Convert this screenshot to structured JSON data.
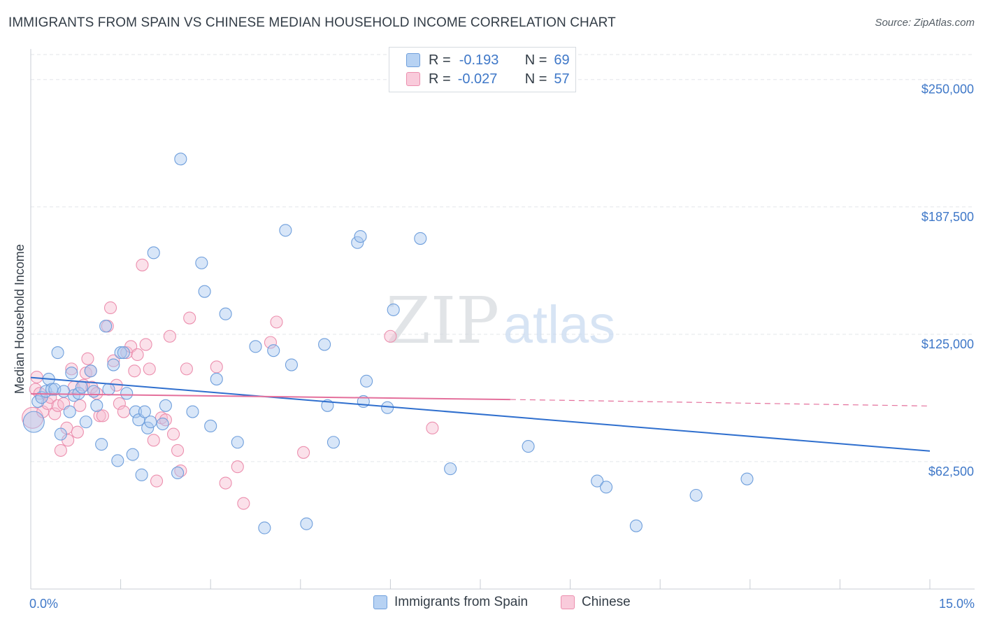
{
  "header": {
    "title": "IMMIGRANTS FROM SPAIN VS CHINESE MEDIAN HOUSEHOLD INCOME CORRELATION CHART",
    "source": "Source: ZipAtlas.com"
  },
  "watermark": {
    "zip": "ZIP",
    "atlas": "atlas"
  },
  "legend": {
    "spain": {
      "r_label": "R =",
      "r_value": "-0.193",
      "n_label": "N =",
      "n_value": "69"
    },
    "chinese": {
      "r_label": "R =",
      "r_value": "-0.027",
      "n_label": "N =",
      "n_value": "57"
    }
  },
  "bottom_legend": {
    "spain": "Immigrants from Spain",
    "chinese": "Chinese"
  },
  "colors": {
    "spain_fill": "#a8c8f0",
    "spain_stroke": "#6f9fdc",
    "spain_line": "#2f6fce",
    "chinese_fill": "#f6bdd0",
    "chinese_stroke": "#ec8fae",
    "chinese_line": "#e4709c",
    "axis_text": "#3f78c8",
    "grid": "#e3e6ea"
  },
  "chart_data": {
    "type": "scatter",
    "title": "IMMIGRANTS FROM SPAIN VS CHINESE MEDIAN HOUSEHOLD INCOME CORRELATION CHART",
    "xlabel": "",
    "ylabel": "Median Household Income",
    "xlim": [
      0,
      15
    ],
    "ylim": [
      0,
      265000
    ],
    "x_tick_labels": [
      "0.0%",
      "15.0%"
    ],
    "y_ticks": [
      62500,
      125000,
      187500,
      250000
    ],
    "y_tick_labels": [
      "$62,500",
      "$125,000",
      "$187,500",
      "$250,000"
    ],
    "grid": true,
    "series": [
      {
        "name": "Immigrants from Spain",
        "points": [
          [
            0.05,
            82000
          ],
          [
            0.12,
            92000
          ],
          [
            0.18,
            94000
          ],
          [
            0.25,
            97000
          ],
          [
            0.3,
            103000
          ],
          [
            0.35,
            98000
          ],
          [
            0.4,
            98000
          ],
          [
            0.45,
            116000
          ],
          [
            0.5,
            76000
          ],
          [
            0.55,
            97000
          ],
          [
            0.65,
            87000
          ],
          [
            0.68,
            106000
          ],
          [
            0.72,
            95000
          ],
          [
            0.8,
            96000
          ],
          [
            0.85,
            99000
          ],
          [
            0.92,
            82000
          ],
          [
            1.0,
            107000
          ],
          [
            1.05,
            97000
          ],
          [
            1.1,
            90000
          ],
          [
            1.18,
            71000
          ],
          [
            1.25,
            129000
          ],
          [
            1.3,
            98000
          ],
          [
            1.38,
            110000
          ],
          [
            1.45,
            63000
          ],
          [
            1.5,
            116000
          ],
          [
            1.55,
            116000
          ],
          [
            1.6,
            96000
          ],
          [
            1.7,
            66000
          ],
          [
            1.75,
            87000
          ],
          [
            1.8,
            83000
          ],
          [
            1.85,
            56000
          ],
          [
            1.9,
            87000
          ],
          [
            1.95,
            79000
          ],
          [
            2.0,
            82000
          ],
          [
            2.05,
            165000
          ],
          [
            2.2,
            81000
          ],
          [
            2.25,
            90000
          ],
          [
            2.45,
            57000
          ],
          [
            2.5,
            211000
          ],
          [
            2.7,
            87000
          ],
          [
            2.85,
            160000
          ],
          [
            2.9,
            146000
          ],
          [
            3.0,
            80000
          ],
          [
            3.1,
            103000
          ],
          [
            3.25,
            135000
          ],
          [
            3.45,
            72000
          ],
          [
            3.75,
            119000
          ],
          [
            3.9,
            30000
          ],
          [
            4.05,
            117000
          ],
          [
            4.25,
            176000
          ],
          [
            4.35,
            110000
          ],
          [
            4.6,
            32000
          ],
          [
            4.9,
            120000
          ],
          [
            4.95,
            90000
          ],
          [
            5.05,
            72000
          ],
          [
            5.45,
            170000
          ],
          [
            5.5,
            173000
          ],
          [
            5.55,
            92000
          ],
          [
            5.6,
            102000
          ],
          [
            5.95,
            89000
          ],
          [
            6.05,
            137000
          ],
          [
            6.5,
            172000
          ],
          [
            7.0,
            59000
          ],
          [
            8.3,
            70000
          ],
          [
            9.45,
            53000
          ],
          [
            9.6,
            50000
          ],
          [
            10.1,
            31000
          ],
          [
            11.1,
            46000
          ],
          [
            11.95,
            54000
          ]
        ]
      },
      {
        "name": "Chinese",
        "points": [
          [
            0.03,
            84000
          ],
          [
            0.08,
            98000
          ],
          [
            0.1,
            104000
          ],
          [
            0.15,
            96000
          ],
          [
            0.2,
            87000
          ],
          [
            0.28,
            91000
          ],
          [
            0.33,
            94000
          ],
          [
            0.4,
            86000
          ],
          [
            0.45,
            90000
          ],
          [
            0.5,
            68000
          ],
          [
            0.55,
            91000
          ],
          [
            0.6,
            79000
          ],
          [
            0.62,
            73000
          ],
          [
            0.68,
            108000
          ],
          [
            0.72,
            99000
          ],
          [
            0.78,
            77000
          ],
          [
            0.82,
            90000
          ],
          [
            0.88,
            100000
          ],
          [
            0.92,
            106000
          ],
          [
            0.95,
            113000
          ],
          [
            1.0,
            107000
          ],
          [
            1.02,
            99000
          ],
          [
            1.1,
            96000
          ],
          [
            1.15,
            85000
          ],
          [
            1.2,
            85000
          ],
          [
            1.28,
            129000
          ],
          [
            1.33,
            138000
          ],
          [
            1.38,
            112000
          ],
          [
            1.43,
            100000
          ],
          [
            1.48,
            91000
          ],
          [
            1.55,
            87000
          ],
          [
            1.6,
            116000
          ],
          [
            1.67,
            119000
          ],
          [
            1.73,
            107000
          ],
          [
            1.78,
            115000
          ],
          [
            1.86,
            159000
          ],
          [
            1.92,
            120000
          ],
          [
            1.98,
            108000
          ],
          [
            2.05,
            73000
          ],
          [
            2.1,
            53000
          ],
          [
            2.18,
            84000
          ],
          [
            2.25,
            83000
          ],
          [
            2.32,
            124000
          ],
          [
            2.38,
            76000
          ],
          [
            2.45,
            68000
          ],
          [
            2.5,
            58000
          ],
          [
            2.6,
            108000
          ],
          [
            2.65,
            133000
          ],
          [
            3.1,
            109000
          ],
          [
            3.25,
            52000
          ],
          [
            3.45,
            60000
          ],
          [
            3.55,
            42000
          ],
          [
            4.0,
            121000
          ],
          [
            4.1,
            131000
          ],
          [
            4.55,
            67000
          ],
          [
            6.0,
            124000
          ],
          [
            6.7,
            79000
          ]
        ]
      }
    ],
    "trend_lines": [
      {
        "name": "Immigrants from Spain",
        "x": [
          0,
          15
        ],
        "y": [
          103800,
          67700
        ],
        "style": "solid"
      },
      {
        "name": "Chinese",
        "x": [
          0,
          8
        ],
        "y": [
          95800,
          93000
        ],
        "style": "solid"
      },
      {
        "name": "Chinese",
        "x": [
          8,
          15
        ],
        "y": [
          93000,
          89800
        ],
        "style": "dashed"
      }
    ]
  }
}
